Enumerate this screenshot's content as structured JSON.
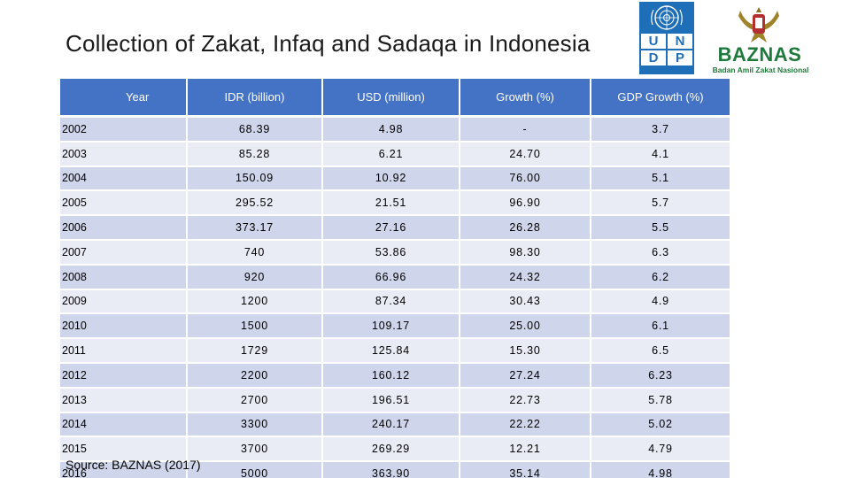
{
  "title": "Collection of Zakat, Infaq and Sadaqa in Indonesia",
  "logos": {
    "undp": {
      "letters": [
        "U",
        "N",
        "D",
        "P"
      ],
      "brand_color": "#1f6fb8"
    },
    "baznas": {
      "name": "BAZNAS",
      "subtitle": "Badan Amil Zakat Nasional",
      "brand_color": "#1e7a3a"
    }
  },
  "table": {
    "header_color": "#4472c4",
    "columns": [
      "Year",
      "IDR (billion)",
      "USD (million)",
      "Growth (%)",
      "GDP Growth (%)"
    ],
    "rows": [
      [
        "2002",
        "68.39",
        "4.98",
        "-",
        "3.7"
      ],
      [
        "2003",
        "85.28",
        "6.21",
        "24.70",
        "4.1"
      ],
      [
        "2004",
        "150.09",
        "10.92",
        "76.00",
        "5.1"
      ],
      [
        "2005",
        "295.52",
        "21.51",
        "96.90",
        "5.7"
      ],
      [
        "2006",
        "373.17",
        "27.16",
        "26.28",
        "5.5"
      ],
      [
        "2007",
        "740",
        "53.86",
        "98.30",
        "6.3"
      ],
      [
        "2008",
        "920",
        "66.96",
        "24.32",
        "6.2"
      ],
      [
        "2009",
        "1200",
        "87.34",
        "30.43",
        "4.9"
      ],
      [
        "2010",
        "1500",
        "109.17",
        "25.00",
        "6.1"
      ],
      [
        "2011",
        "1729",
        "125.84",
        "15.30",
        "6.5"
      ],
      [
        "2012",
        "2200",
        "160.12",
        "27.24",
        "6.23"
      ],
      [
        "2013",
        "2700",
        "196.51",
        "22.73",
        "5.78"
      ],
      [
        "2014",
        "3300",
        "240.17",
        "22.22",
        "5.02"
      ],
      [
        "2015",
        "3700",
        "269.29",
        "12.21",
        "4.79"
      ],
      [
        "2016",
        "5000",
        "363.90",
        "35.14",
        "4.98"
      ]
    ]
  },
  "source": "Source: BAZNAS (2017)"
}
